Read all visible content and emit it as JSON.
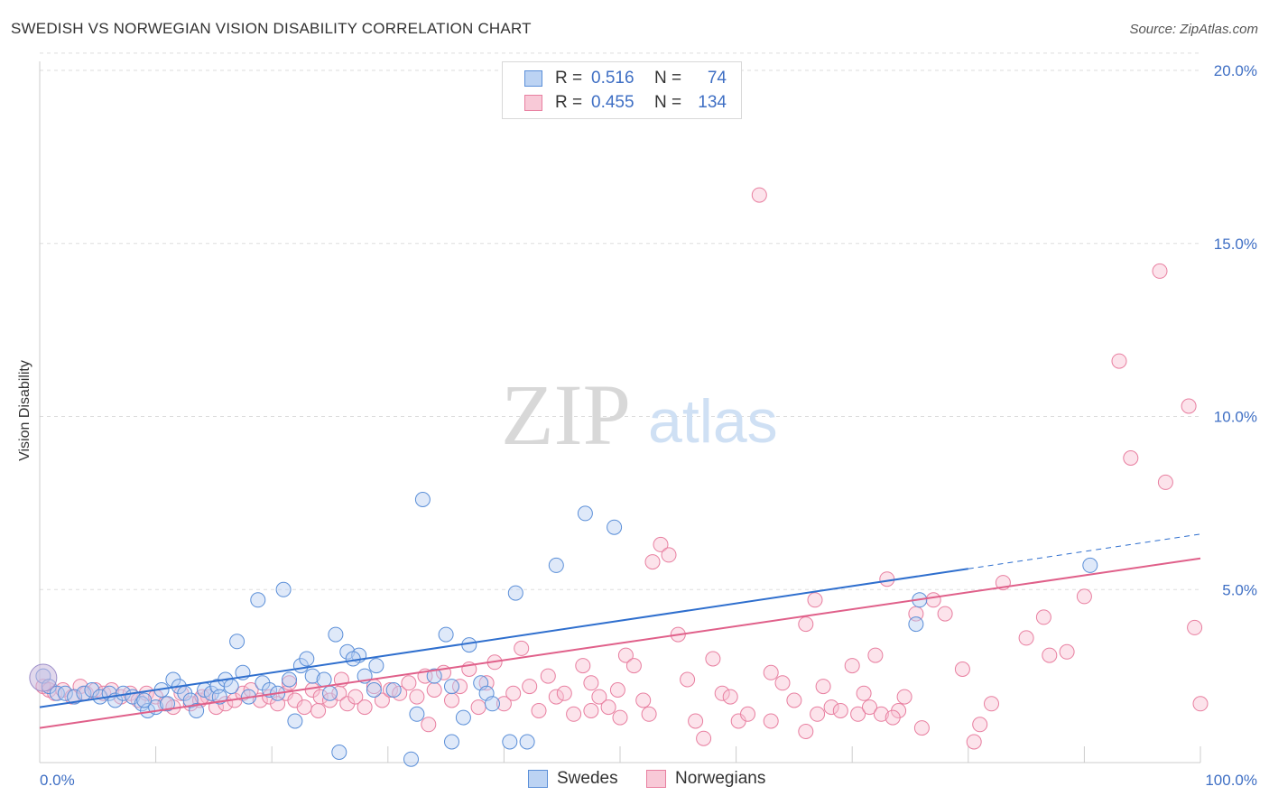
{
  "header": {
    "title": "SWEDISH VS NORWEGIAN VISION DISABILITY CORRELATION CHART",
    "source": "Source: ZipAtlas.com"
  },
  "watermark": {
    "zip": "ZIP",
    "atlas": "atlas"
  },
  "legend": {
    "series": [
      {
        "r_label": "R =",
        "r_value": "0.516",
        "n_label": "N =",
        "n_value": "74",
        "color": "#5b8fd8"
      },
      {
        "r_label": "R =",
        "r_value": "0.455",
        "n_label": "N =",
        "n_value": "134",
        "color": "#e87fa0"
      }
    ],
    "bottom": [
      {
        "label": "Swedes",
        "color": "#5b8fd8"
      },
      {
        "label": "Norwegians",
        "color": "#e87fa0"
      }
    ]
  },
  "chart_data": {
    "type": "scatter",
    "ylabel": "Vision Disability",
    "xlim": [
      0,
      100
    ],
    "ylim": [
      0,
      20
    ],
    "x_tick_labels": [
      "0.0%",
      "100.0%"
    ],
    "y_ticks": [
      5,
      10,
      15,
      20
    ],
    "y_tick_labels": [
      "5.0%",
      "10.0%",
      "15.0%",
      "20.0%"
    ],
    "grid": true,
    "series": [
      {
        "name": "Swedes",
        "color": "#5b8fd8",
        "trend": {
          "x0": 0,
          "y0": 1.6,
          "x1": 80,
          "y1": 5.6,
          "dashed_to_x": 100,
          "dashed_to_y": 6.6
        },
        "points": [
          [
            0.3,
            2.5
          ],
          [
            0.8,
            2.2
          ],
          [
            1.5,
            2.0
          ],
          [
            2.2,
            2.0
          ],
          [
            3.0,
            1.9
          ],
          [
            3.8,
            2.0
          ],
          [
            4.5,
            2.1
          ],
          [
            5.2,
            1.9
          ],
          [
            6.0,
            2.0
          ],
          [
            6.5,
            1.8
          ],
          [
            7.2,
            2.0
          ],
          [
            8.0,
            1.9
          ],
          [
            8.8,
            1.7
          ],
          [
            9.3,
            1.5
          ],
          [
            10.0,
            1.6
          ],
          [
            10.5,
            2.1
          ],
          [
            11.0,
            1.7
          ],
          [
            11.5,
            2.4
          ],
          [
            12.0,
            2.2
          ],
          [
            12.5,
            2.0
          ],
          [
            13.0,
            1.8
          ],
          [
            13.5,
            1.5
          ],
          [
            14.2,
            2.1
          ],
          [
            14.8,
            2.0
          ],
          [
            15.3,
            2.2
          ],
          [
            16.0,
            2.4
          ],
          [
            16.5,
            2.2
          ],
          [
            17.0,
            3.5
          ],
          [
            17.5,
            2.6
          ],
          [
            18.0,
            1.9
          ],
          [
            18.8,
            4.7
          ],
          [
            19.2,
            2.3
          ],
          [
            19.8,
            2.1
          ],
          [
            20.5,
            2.0
          ],
          [
            21.0,
            5.0
          ],
          [
            21.5,
            2.4
          ],
          [
            22.0,
            1.2
          ],
          [
            22.5,
            2.8
          ],
          [
            23.0,
            3.0
          ],
          [
            23.5,
            2.5
          ],
          [
            24.5,
            2.4
          ],
          [
            25.0,
            2.0
          ],
          [
            25.5,
            3.7
          ],
          [
            26.5,
            3.2
          ],
          [
            27.5,
            3.1
          ],
          [
            27.0,
            3.0
          ],
          [
            28.0,
            2.5
          ],
          [
            28.8,
            2.1
          ],
          [
            29.0,
            2.8
          ],
          [
            30.5,
            2.1
          ],
          [
            32.5,
            1.4
          ],
          [
            33.0,
            7.6
          ],
          [
            34.0,
            2.5
          ],
          [
            35.0,
            3.7
          ],
          [
            35.5,
            2.2
          ],
          [
            37.0,
            3.4
          ],
          [
            38.0,
            2.3
          ],
          [
            38.5,
            2.0
          ],
          [
            39.0,
            1.7
          ],
          [
            41.0,
            4.9
          ],
          [
            42.0,
            0.6
          ],
          [
            44.5,
            5.7
          ],
          [
            47.0,
            7.2
          ],
          [
            49.5,
            6.8
          ],
          [
            75.8,
            4.7
          ],
          [
            75.5,
            4.0
          ],
          [
            90.5,
            5.7
          ],
          [
            25.8,
            0.3
          ],
          [
            32.0,
            0.1
          ],
          [
            35.5,
            0.6
          ],
          [
            40.5,
            0.6
          ],
          [
            9.0,
            1.8
          ],
          [
            15.5,
            1.9
          ],
          [
            36.5,
            1.3
          ]
        ]
      },
      {
        "name": "Norwegians",
        "color": "#e87fa0",
        "trend": {
          "x0": 0,
          "y0": 1.0,
          "x1": 100,
          "y1": 5.9
        },
        "points": [
          [
            0.3,
            2.2
          ],
          [
            0.8,
            2.1
          ],
          [
            1.3,
            2.0
          ],
          [
            2.0,
            2.1
          ],
          [
            2.8,
            1.9
          ],
          [
            3.5,
            2.2
          ],
          [
            4.0,
            2.0
          ],
          [
            4.8,
            2.1
          ],
          [
            5.5,
            2.0
          ],
          [
            6.2,
            2.1
          ],
          [
            7.0,
            1.9
          ],
          [
            7.8,
            2.0
          ],
          [
            8.5,
            1.8
          ],
          [
            9.2,
            2.0
          ],
          [
            10.0,
            1.9
          ],
          [
            10.8,
            1.7
          ],
          [
            11.5,
            1.6
          ],
          [
            12.2,
            2.0
          ],
          [
            13.0,
            1.7
          ],
          [
            13.8,
            1.8
          ],
          [
            14.5,
            1.9
          ],
          [
            15.2,
            1.6
          ],
          [
            16.0,
            1.7
          ],
          [
            16.8,
            1.8
          ],
          [
            17.5,
            2.0
          ],
          [
            18.2,
            2.1
          ],
          [
            19.0,
            1.8
          ],
          [
            19.8,
            1.9
          ],
          [
            20.5,
            1.7
          ],
          [
            21.2,
            2.0
          ],
          [
            22.0,
            1.8
          ],
          [
            22.8,
            1.6
          ],
          [
            23.5,
            2.1
          ],
          [
            24.2,
            1.9
          ],
          [
            25.0,
            1.8
          ],
          [
            25.8,
            2.0
          ],
          [
            26.5,
            1.7
          ],
          [
            27.2,
            1.9
          ],
          [
            28.0,
            1.6
          ],
          [
            28.8,
            2.2
          ],
          [
            29.5,
            1.8
          ],
          [
            30.2,
            2.1
          ],
          [
            31.0,
            2.0
          ],
          [
            31.8,
            2.3
          ],
          [
            32.5,
            1.9
          ],
          [
            33.2,
            2.5
          ],
          [
            34.0,
            2.1
          ],
          [
            34.8,
            2.6
          ],
          [
            35.5,
            1.8
          ],
          [
            36.2,
            2.2
          ],
          [
            37.0,
            2.7
          ],
          [
            37.8,
            1.6
          ],
          [
            38.5,
            2.3
          ],
          [
            39.2,
            2.9
          ],
          [
            40.0,
            1.7
          ],
          [
            40.8,
            2.0
          ],
          [
            41.5,
            3.3
          ],
          [
            42.2,
            2.2
          ],
          [
            43.0,
            1.5
          ],
          [
            43.8,
            2.5
          ],
          [
            44.5,
            1.9
          ],
          [
            45.2,
            2.0
          ],
          [
            46.0,
            1.4
          ],
          [
            46.8,
            2.8
          ],
          [
            47.5,
            2.3
          ],
          [
            48.2,
            1.9
          ],
          [
            49.0,
            1.6
          ],
          [
            49.8,
            2.1
          ],
          [
            50.5,
            3.1
          ],
          [
            51.2,
            2.8
          ],
          [
            52.0,
            1.8
          ],
          [
            52.8,
            5.8
          ],
          [
            53.5,
            6.3
          ],
          [
            54.2,
            6.0
          ],
          [
            55.0,
            3.7
          ],
          [
            55.8,
            2.4
          ],
          [
            56.5,
            1.2
          ],
          [
            57.2,
            0.7
          ],
          [
            58.0,
            3.0
          ],
          [
            58.8,
            2.0
          ],
          [
            59.5,
            1.9
          ],
          [
            60.2,
            1.2
          ],
          [
            61.0,
            1.4
          ],
          [
            62.0,
            16.4
          ],
          [
            63.0,
            2.6
          ],
          [
            64.0,
            2.3
          ],
          [
            65.0,
            1.8
          ],
          [
            66.0,
            4.0
          ],
          [
            66.8,
            4.7
          ],
          [
            67.5,
            2.2
          ],
          [
            68.2,
            1.6
          ],
          [
            69.0,
            1.5
          ],
          [
            70.0,
            2.8
          ],
          [
            71.0,
            2.0
          ],
          [
            72.0,
            3.1
          ],
          [
            73.0,
            5.3
          ],
          [
            74.0,
            1.5
          ],
          [
            74.5,
            1.9
          ],
          [
            75.5,
            4.3
          ],
          [
            76.0,
            1.0
          ],
          [
            77.0,
            4.7
          ],
          [
            78.0,
            4.3
          ],
          [
            79.5,
            2.7
          ],
          [
            80.5,
            0.6
          ],
          [
            81.0,
            1.1
          ],
          [
            82.0,
            1.7
          ],
          [
            83.0,
            5.2
          ],
          [
            85.0,
            3.6
          ],
          [
            86.5,
            4.2
          ],
          [
            87.0,
            3.1
          ],
          [
            88.5,
            3.2
          ],
          [
            90.0,
            4.8
          ],
          [
            93.0,
            11.6
          ],
          [
            94.0,
            8.8
          ],
          [
            96.5,
            14.2
          ],
          [
            97.0,
            8.1
          ],
          [
            99.0,
            10.3
          ],
          [
            99.5,
            3.9
          ],
          [
            33.5,
            1.1
          ],
          [
            47.5,
            1.5
          ],
          [
            50.0,
            1.3
          ],
          [
            52.5,
            1.4
          ],
          [
            63.0,
            1.2
          ],
          [
            66.0,
            0.9
          ],
          [
            67.0,
            1.4
          ],
          [
            70.5,
            1.4
          ],
          [
            71.5,
            1.6
          ],
          [
            72.5,
            1.4
          ],
          [
            73.5,
            1.3
          ],
          [
            100,
            1.7
          ],
          [
            14.0,
            1.9
          ],
          [
            24.0,
            1.5
          ],
          [
            21.5,
            2.3
          ],
          [
            26.0,
            2.4
          ]
        ]
      }
    ]
  }
}
